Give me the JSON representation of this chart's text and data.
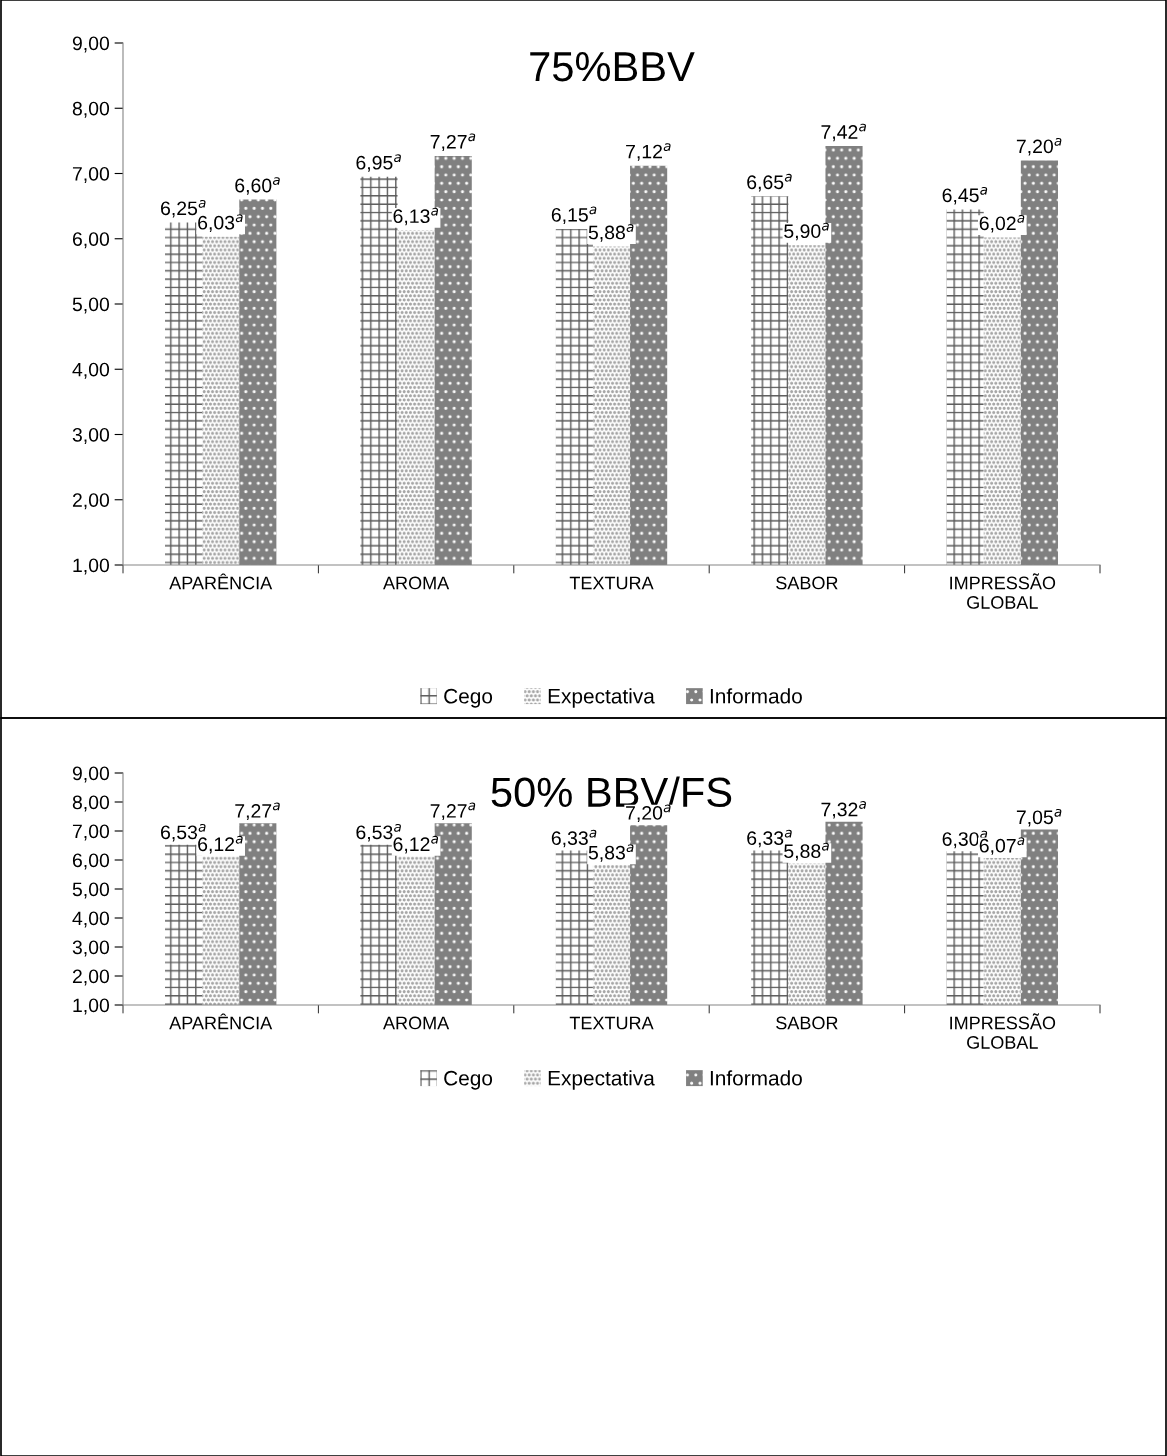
{
  "chart_data": [
    {
      "type": "bar",
      "title": "75%BBV",
      "categories": [
        "APARÊNCIA",
        "AROMA",
        "TEXTURA",
        "SABOR",
        "IMPRESSÃO\nGLOBAL"
      ],
      "series": [
        {
          "name": "Cego",
          "color": "#595959",
          "values": [
            6.25,
            6.95,
            6.15,
            6.65,
            6.45
          ],
          "value_labels": [
            "6,25$^{a}$",
            "6,95$^{a}$",
            "6,15$^{a}$",
            "6,65$^{a}$",
            "6,45$^{a}$"
          ]
        },
        {
          "name": "Expectativa",
          "color": "#a6a6a6",
          "values": [
            6.03,
            6.13,
            5.88,
            5.9,
            6.02
          ],
          "value_labels": [
            "6,03$^{a}$",
            "6,13$^{a}$",
            "5,88$^{a}$",
            "5,90$^{a}$",
            "6,02$^{a}$"
          ]
        },
        {
          "name": "Informado",
          "color": "#808080",
          "values": [
            6.6,
            7.27,
            7.12,
            7.42,
            7.2
          ],
          "value_labels": [
            "6,60$^{a}$",
            "7,27$^{a}$",
            "7,12$^{a}$",
            "7,42$^{a}$",
            "7,20$^{a}$"
          ]
        }
      ],
      "ylim": [
        1,
        9
      ],
      "yticks": [
        {
          "value": 1,
          "label": "1,00"
        },
        {
          "value": 2,
          "label": "2,00"
        },
        {
          "value": 3,
          "label": "3,00"
        },
        {
          "value": 4,
          "label": "4,00"
        },
        {
          "value": 5,
          "label": "5,00"
        },
        {
          "value": 6,
          "label": "6,00"
        },
        {
          "value": 7,
          "label": "7,00"
        },
        {
          "value": 8,
          "label": "8,00"
        },
        {
          "value": 9,
          "label": "9,00"
        }
      ],
      "grid": false,
      "legend": "bottom"
    },
    {
      "type": "bar",
      "title": "50% BBV/FS",
      "categories": [
        "APARÊNCIA",
        "AROMA",
        "TEXTURA",
        "SABOR",
        "IMPRESSÃO\nGLOBAL"
      ],
      "series": [
        {
          "name": "Cego",
          "color": "#595959",
          "values": [
            6.53,
            6.53,
            6.33,
            6.33,
            6.3
          ],
          "value_labels": [
            "6,53$^{a}$",
            "6,53$^{a}$",
            "6,33$^{a}$",
            "6,33$^{a}$",
            "6,30$^{a}$"
          ]
        },
        {
          "name": "Expectativa",
          "color": "#a6a6a6",
          "values": [
            6.12,
            6.12,
            5.83,
            5.88,
            6.07
          ],
          "value_labels": [
            "6,12$^{a}$",
            "6,12$^{a}$",
            "5,83$^{a}$",
            "5,88$^{a}$",
            "6,07$^{a}$"
          ]
        },
        {
          "name": "Informado",
          "color": "#808080",
          "values": [
            7.27,
            7.27,
            7.2,
            7.32,
            7.05
          ],
          "value_labels": [
            "7,27$^{a}$",
            "7,27$^{a}$",
            "7,20$^{a}$",
            "7,32$^{a}$",
            "7,05$^{a}$"
          ]
        }
      ],
      "ylim": [
        1,
        9
      ],
      "yticks": [
        {
          "value": 1,
          "label": "1,00"
        },
        {
          "value": 2,
          "label": "2,00"
        },
        {
          "value": 3,
          "label": "3,00"
        },
        {
          "value": 4,
          "label": "4,00"
        },
        {
          "value": 5,
          "label": "5,00"
        },
        {
          "value": 6,
          "label": "6,00"
        },
        {
          "value": 7,
          "label": "7,00"
        },
        {
          "value": 8,
          "label": "8,00"
        },
        {
          "value": 9,
          "label": "9,00"
        }
      ],
      "grid": false,
      "legend": "bottom"
    }
  ]
}
